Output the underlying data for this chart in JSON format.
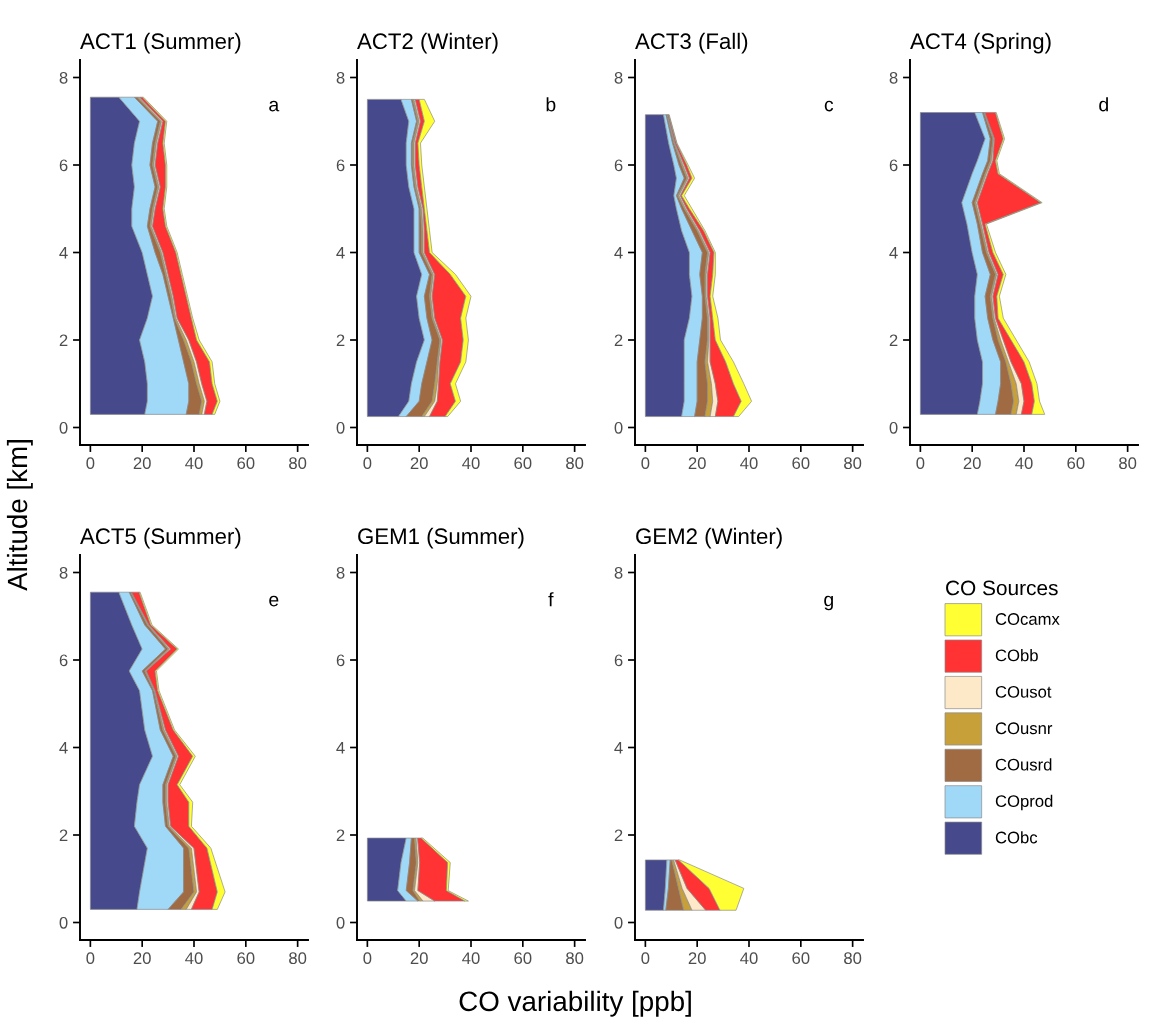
{
  "chart_data": [
    {
      "type": "area",
      "stacked": true,
      "orientation": "horizontal",
      "title": "ACT1 (Summer)",
      "xlabel": "CO variability [ppb]",
      "ylabel": "Altitude [km]",
      "legend_title": "CO Sources",
      "legend": "right",
      "annotations": [
        "a"
      ],
      "xlim": [
        -4,
        84
      ],
      "ylim": [
        -0.4,
        8.4
      ],
      "xticks": [
        0,
        20,
        40,
        60,
        80
      ],
      "yticks": [
        0,
        2,
        4,
        6,
        8
      ],
      "grid": false,
      "x": [
        0.3,
        0.6,
        1.0,
        1.5,
        2.0,
        2.5,
        3.0,
        3.5,
        4.0,
        4.6,
        5.0,
        5.5,
        6.0,
        6.5,
        7.0,
        7.55
      ],
      "series": [
        {
          "name": "CObc",
          "color": "#464a8c",
          "values": [
            21,
            22,
            22,
            21,
            19,
            22,
            24,
            22,
            20,
            16,
            16,
            17,
            16,
            17,
            19,
            11
          ]
        },
        {
          "name": "COprod",
          "color": "#a0d8f8",
          "values": [
            16,
            16,
            16,
            15,
            15,
            10,
            6,
            6,
            5,
            6,
            7,
            8,
            7,
            7,
            7,
            6
          ]
        },
        {
          "name": "COusrd",
          "color": "#a06a42",
          "values": [
            5,
            5,
            3,
            3,
            2,
            0.5,
            1,
            1,
            2,
            1,
            1,
            1,
            1,
            1,
            1,
            1
          ]
        },
        {
          "name": "COusnr",
          "color": "#c8a03a",
          "values": [
            1,
            1,
            1,
            1,
            1,
            0.5,
            0.5,
            0.5,
            0.5,
            0.5,
            0.5,
            0.5,
            0.5,
            0.5,
            0.5,
            0.5
          ]
        },
        {
          "name": "COusot",
          "color": "#fde8c8",
          "values": [
            1,
            1,
            1,
            1,
            1,
            0.5,
            0.5,
            0.5,
            0.5,
            0.5,
            0.5,
            0.5,
            0.5,
            0.5,
            0.5,
            0.5
          ]
        },
        {
          "name": "CObb",
          "color": "#ff3333",
          "values": [
            3,
            4,
            4,
            5,
            3,
            5.5,
            5,
            5,
            5,
            5,
            3,
            2,
            4,
            2,
            1,
            1
          ]
        },
        {
          "name": "COcamx",
          "color": "#ffff33",
          "values": [
            1,
            1,
            1,
            1,
            1,
            0.5,
            0.5,
            0.5,
            0.5,
            0.5,
            0.5,
            0.5,
            0.5,
            0.5,
            0.5,
            0.5
          ]
        }
      ]
    },
    {
      "type": "area",
      "stacked": true,
      "orientation": "horizontal",
      "title": "ACT2 (Winter)",
      "annotations": [
        "b"
      ],
      "xlim": [
        -4,
        84
      ],
      "ylim": [
        -0.4,
        8.4
      ],
      "xticks": [
        0,
        20,
        40,
        60,
        80
      ],
      "yticks": [
        0,
        2,
        4,
        6,
        8
      ],
      "grid": false,
      "x": [
        0.25,
        0.6,
        1.0,
        1.5,
        2.0,
        2.5,
        3.0,
        3.5,
        4.0,
        4.5,
        5.0,
        5.5,
        6.0,
        6.5,
        7.0,
        7.5
      ],
      "series": [
        {
          "color": "#464a8c",
          "values": [
            12,
            16,
            17,
            19,
            22,
            20,
            19,
            21,
            18,
            18,
            18,
            16,
            15,
            15,
            16,
            13
          ]
        },
        {
          "color": "#a0d8f8",
          "values": [
            3,
            4,
            4,
            4,
            3,
            3,
            3,
            3,
            2,
            2,
            2,
            2,
            2,
            2,
            3,
            4
          ]
        },
        {
          "color": "#a06a42",
          "values": [
            6,
            5,
            5,
            4,
            3,
            2,
            2,
            1,
            1,
            1,
            0.5,
            0.5,
            0.5,
            0.5,
            0.5,
            0.5
          ]
        },
        {
          "color": "#c8a03a",
          "values": [
            1,
            1,
            1,
            0.5,
            0.5,
            0.5,
            0.5,
            0.5,
            0.5,
            0.5,
            0.5,
            0.5,
            0.5,
            0.5,
            0.5,
            0.5
          ]
        },
        {
          "color": "#fde8c8",
          "values": [
            2,
            1,
            0.5,
            0.5,
            0.5,
            0.5,
            0.5,
            0.5,
            0.5,
            0.5,
            0.5,
            0.5,
            0.5,
            0.5,
            0.5,
            0.5
          ]
        },
        {
          "color": "#ff3333",
          "values": [
            6,
            7,
            4.5,
            8,
            8,
            10,
            13,
            6,
            2,
            1,
            0.5,
            1.5,
            1.5,
            1,
            1.5,
            1.5
          ]
        },
        {
          "color": "#ffff33",
          "values": [
            1,
            2,
            2,
            2,
            2,
            2,
            2,
            2,
            1,
            1,
            1,
            1,
            1,
            1,
            4,
            2
          ]
        }
      ]
    },
    {
      "type": "area",
      "stacked": true,
      "orientation": "horizontal",
      "title": "ACT3 (Fall)",
      "annotations": [
        "c"
      ],
      "xlim": [
        -4,
        84
      ],
      "ylim": [
        -0.4,
        8.4
      ],
      "xticks": [
        0,
        20,
        40,
        60,
        80
      ],
      "yticks": [
        0,
        2,
        4,
        6,
        8
      ],
      "grid": false,
      "x": [
        0.25,
        0.6,
        1.0,
        1.5,
        2.0,
        2.5,
        3.0,
        3.5,
        4.0,
        4.5,
        5.0,
        5.3,
        5.7,
        6.0,
        6.5,
        7.15
      ],
      "series": [
        {
          "color": "#464a8c",
          "values": [
            14,
            15,
            15,
            15,
            15,
            17,
            18,
            17,
            17,
            14,
            12,
            11,
            12,
            11,
            9,
            7
          ]
        },
        {
          "color": "#a0d8f8",
          "values": [
            5,
            5,
            5,
            5,
            6,
            5,
            4,
            4,
            5,
            4,
            2,
            1,
            3,
            2,
            1.5,
            1
          ]
        },
        {
          "color": "#a06a42",
          "values": [
            4,
            4,
            4,
            3,
            3,
            2,
            1,
            2,
            2,
            2,
            1,
            0.5,
            1,
            1,
            0.5,
            0.3
          ]
        },
        {
          "color": "#c8a03a",
          "values": [
            2,
            2,
            1.5,
            1,
            0.5,
            0.5,
            0.5,
            0.5,
            0.5,
            0.5,
            0.5,
            0.5,
            0.5,
            0.5,
            0.3,
            0.2
          ]
        },
        {
          "color": "#fde8c8",
          "values": [
            2,
            2,
            1.5,
            1,
            0.5,
            0.5,
            0.5,
            0.5,
            0.5,
            0.5,
            0.5,
            0.5,
            0.5,
            0.5,
            0.2,
            0.2
          ]
        },
        {
          "color": "#ff3333",
          "values": [
            7,
            9,
            7,
            6,
            2,
            1,
            1,
            2,
            1.5,
            1.5,
            1,
            0.5,
            1,
            1,
            0.5,
            0.3
          ]
        },
        {
          "color": "#ffff33",
          "values": [
            2,
            4,
            4,
            3,
            2,
            2,
            1,
            1,
            0.5,
            0.5,
            1,
            1,
            1,
            0.5,
            0.2,
            0.2
          ]
        }
      ]
    },
    {
      "type": "area",
      "stacked": true,
      "orientation": "horizontal",
      "title": "ACT4 (Spring)",
      "annotations": [
        "d"
      ],
      "xlim": [
        -4,
        84
      ],
      "ylim": [
        -0.4,
        8.4
      ],
      "xticks": [
        0,
        20,
        40,
        60,
        80
      ],
      "yticks": [
        0,
        2,
        4,
        6,
        8
      ],
      "grid": false,
      "x": [
        0.3,
        0.6,
        1.0,
        1.5,
        2.0,
        2.5,
        3.0,
        3.5,
        4.0,
        4.65,
        5.14,
        5.8,
        6.1,
        6.6,
        7.2
      ],
      "series": [
        {
          "color": "#464a8c",
          "values": [
            22,
            23,
            24,
            24,
            22,
            21,
            21,
            22,
            20,
            18,
            16,
            20,
            22,
            25,
            21
          ]
        },
        {
          "color": "#a0d8f8",
          "values": [
            7,
            7,
            7,
            7,
            6,
            5,
            4,
            5,
            4,
            4,
            4,
            4,
            4,
            2,
            3
          ]
        },
        {
          "color": "#a06a42",
          "values": [
            6,
            6,
            4,
            2,
            2,
            2,
            2,
            2,
            1.5,
            1,
            1,
            1,
            1,
            1,
            0.5
          ]
        },
        {
          "color": "#c8a03a",
          "values": [
            2,
            2,
            2,
            1,
            1,
            0.5,
            0.5,
            0.5,
            0.5,
            0.5,
            0.5,
            0.5,
            0.5,
            0.3,
            0.2
          ]
        },
        {
          "color": "#fde8c8",
          "values": [
            2,
            2,
            2,
            1,
            1,
            0.5,
            0.5,
            0.5,
            0.5,
            0.5,
            0.5,
            0.5,
            0.5,
            0.3,
            0.2
          ]
        },
        {
          "color": "#ff3333",
          "values": [
            4,
            4,
            4,
            5,
            3,
            1,
            1.5,
            2,
            1.5,
            1,
            24.5,
            4,
            1,
            3.4,
            4.1
          ]
        },
        {
          "color": "#ffff33",
          "values": [
            5,
            2,
            2,
            2,
            2,
            2,
            1,
            1,
            1,
            0.5,
            0.5,
            0.5,
            0.5,
            0.5,
            0.3
          ]
        }
      ]
    },
    {
      "type": "area",
      "stacked": true,
      "orientation": "horizontal",
      "title": "ACT5 (Summer)",
      "annotations": [
        "e"
      ],
      "xlim": [
        -4,
        84
      ],
      "ylim": [
        -0.4,
        8.4
      ],
      "xticks": [
        0,
        20,
        40,
        60,
        80
      ],
      "yticks": [
        0,
        2,
        4,
        6,
        8
      ],
      "grid": false,
      "x": [
        0.3,
        0.7,
        1.7,
        2.2,
        2.75,
        3.15,
        3.8,
        4.4,
        5.3,
        5.75,
        6.25,
        6.8,
        7.55
      ],
      "series": [
        {
          "color": "#464a8c",
          "values": [
            18,
            19,
            22,
            17,
            18,
            19,
            24,
            21,
            19,
            15,
            20,
            16,
            11
          ]
        },
        {
          "color": "#a0d8f8",
          "values": [
            12,
            17,
            14,
            12,
            10,
            9,
            8,
            6,
            5,
            5,
            9,
            5,
            4
          ]
        },
        {
          "color": "#a06a42",
          "values": [
            5,
            4,
            2,
            1,
            1,
            1,
            1,
            1,
            0.5,
            1,
            1,
            1,
            0.5
          ]
        },
        {
          "color": "#c8a03a",
          "values": [
            2,
            1,
            1,
            0.5,
            0.5,
            0.5,
            0.5,
            0.5,
            0.3,
            0.3,
            0.5,
            0.3,
            0.2
          ]
        },
        {
          "color": "#fde8c8",
          "values": [
            2,
            1,
            1,
            0.5,
            0.5,
            0.5,
            0.5,
            0.5,
            0.2,
            0.3,
            0.5,
            0.3,
            0.2
          ]
        },
        {
          "color": "#ff3333",
          "values": [
            8,
            7,
            5,
            7,
            8,
            3.5,
            5.5,
            3,
            1,
            3.4,
            2.5,
            0.7,
            2.9
          ]
        },
        {
          "color": "#ffff33",
          "values": [
            2,
            3,
            1.5,
            1,
            1.5,
            1,
            1,
            0.5,
            0.5,
            0.5,
            0.5,
            0.5,
            0.4
          ]
        }
      ]
    },
    {
      "type": "area",
      "stacked": true,
      "orientation": "horizontal",
      "title": "GEM1 (Summer)",
      "annotations": [
        "f"
      ],
      "xlim": [
        -4,
        84
      ],
      "ylim": [
        -0.4,
        8.4
      ],
      "xticks": [
        0,
        20,
        40,
        60,
        80
      ],
      "yticks": [
        0,
        2,
        4,
        6,
        8
      ],
      "grid": false,
      "x": [
        0.49,
        0.73,
        1.37,
        1.93
      ],
      "series": [
        {
          "color": "#464a8c",
          "values": [
            15,
            11.7,
            13,
            15
          ]
        },
        {
          "color": "#a0d8f8",
          "values": [
            4.5,
            3.3,
            3.3,
            2
          ]
        },
        {
          "color": "#a06a42",
          "values": [
            0.7,
            2.6,
            2.6,
            1.2
          ]
        },
        {
          "color": "#c8a03a",
          "values": [
            1.3,
            0.6,
            0.6,
            0.6
          ]
        },
        {
          "color": "#fde8c8",
          "values": [
            4.5,
            1.3,
            0.7,
            0.6
          ]
        },
        {
          "color": "#ff3333",
          "values": [
            11.7,
            11,
            10.8,
            1.4
          ]
        },
        {
          "color": "#ffff33",
          "values": [
            1.3,
            0.7,
            1,
            0.6
          ]
        }
      ]
    },
    {
      "type": "area",
      "stacked": true,
      "orientation": "horizontal",
      "title": "GEM2 (Winter)",
      "annotations": [
        "g"
      ],
      "xlim": [
        -4,
        84
      ],
      "ylim": [
        -0.4,
        8.4
      ],
      "xticks": [
        0,
        20,
        40,
        60,
        80
      ],
      "yticks": [
        0,
        2,
        4,
        6,
        8
      ],
      "grid": false,
      "x": [
        0.28,
        0.78,
        1.43
      ],
      "series": [
        {
          "color": "#464a8c",
          "values": [
            7,
            7.7,
            8.3
          ]
        },
        {
          "color": "#a0d8f8",
          "values": [
            0.9,
            1.2,
            1.3
          ]
        },
        {
          "color": "#a06a42",
          "values": [
            6.9,
            3.9,
            0.6
          ]
        },
        {
          "color": "#c8a03a",
          "values": [
            3.2,
            1.4,
            0.7
          ]
        },
        {
          "color": "#fde8c8",
          "values": [
            5.3,
            1.9,
            0.6
          ]
        },
        {
          "color": "#ff3333",
          "values": [
            5.5,
            8.5,
            1.3
          ]
        },
        {
          "color": "#ffff33",
          "values": [
            6.2,
            13.4,
            0.4
          ]
        }
      ]
    }
  ]
}
